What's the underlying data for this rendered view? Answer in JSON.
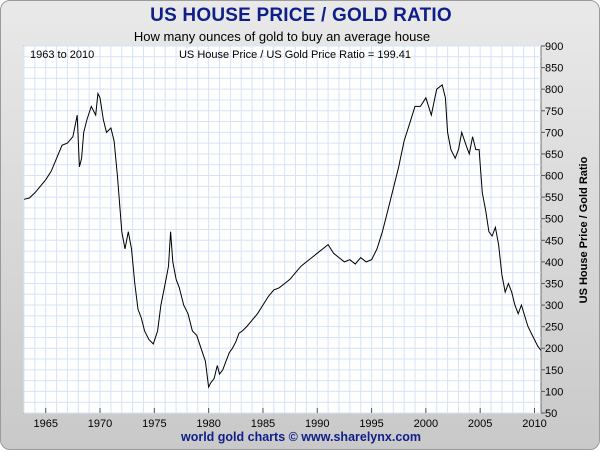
{
  "title": "US HOUSE PRICE / GOLD RATIO",
  "footer": "world gold charts © www.sharelynx.com",
  "colors": {
    "title": "#0f1f8a",
    "line": "#000000",
    "grid": "#d6e4f6",
    "frame_bg": "#d9d9d9"
  },
  "chart_data": {
    "type": "line",
    "title": "US HOUSE PRICE / GOLD RATIO",
    "subtitle": "How many ounces of gold to buy an average house",
    "annotation_left": "1963 to 2010",
    "annotation_center": "US House Price / US Gold Price Ratio = 199.41",
    "ylabel": "US House Price / Gold Ratio",
    "xlabel": "",
    "xlim": [
      1963,
      2010.6
    ],
    "ylim": [
      50,
      900
    ],
    "x_ticks": [
      1965,
      1970,
      1975,
      1980,
      1985,
      1990,
      1995,
      2000,
      2005,
      2010
    ],
    "y_ticks": [
      50,
      100,
      150,
      200,
      250,
      300,
      350,
      400,
      450,
      500,
      550,
      600,
      650,
      700,
      750,
      800,
      850,
      900
    ],
    "grid": true,
    "series": [
      {
        "name": "US House Price / Gold Ratio",
        "x": [
          1963.0,
          1963.5,
          1964.0,
          1964.5,
          1965.0,
          1965.5,
          1966.0,
          1966.5,
          1967.0,
          1967.5,
          1967.9,
          1968.1,
          1968.3,
          1968.5,
          1968.8,
          1969.2,
          1969.6,
          1969.8,
          1970.0,
          1970.3,
          1970.6,
          1971.0,
          1971.3,
          1971.6,
          1972.0,
          1972.3,
          1972.6,
          1972.9,
          1973.2,
          1973.5,
          1973.8,
          1974.1,
          1974.5,
          1974.9,
          1975.3,
          1975.6,
          1976.0,
          1976.3,
          1976.5,
          1976.7,
          1977.0,
          1977.3,
          1977.7,
          1978.1,
          1978.5,
          1978.9,
          1979.3,
          1979.7,
          1980.0,
          1980.2,
          1980.5,
          1980.8,
          1981.0,
          1981.3,
          1981.6,
          1981.9,
          1982.2,
          1982.5,
          1982.8,
          1983.1,
          1983.5,
          1984.0,
          1984.5,
          1985.0,
          1985.5,
          1986.0,
          1986.5,
          1987.0,
          1987.5,
          1988.0,
          1988.5,
          1989.0,
          1989.5,
          1990.0,
          1990.5,
          1991.0,
          1991.5,
          1992.0,
          1992.5,
          1993.0,
          1993.5,
          1994.0,
          1994.5,
          1995.0,
          1995.5,
          1996.0,
          1996.5,
          1997.0,
          1997.5,
          1998.0,
          1998.5,
          1999.0,
          1999.5,
          2000.0,
          2000.5,
          2001.0,
          2001.5,
          2001.8,
          2002.0,
          2002.3,
          2002.7,
          2003.0,
          2003.3,
          2003.7,
          2004.0,
          2004.3,
          2004.6,
          2004.9,
          2005.2,
          2005.5,
          2005.8,
          2006.1,
          2006.4,
          2006.7,
          2007.0,
          2007.3,
          2007.6,
          2007.9,
          2008.2,
          2008.5,
          2008.8,
          2009.1,
          2009.4,
          2009.7,
          2010.0,
          2010.3,
          2010.6
        ],
        "values": [
          545,
          548,
          560,
          575,
          590,
          610,
          640,
          670,
          675,
          690,
          740,
          620,
          640,
          700,
          730,
          760,
          740,
          790,
          780,
          730,
          700,
          710,
          680,
          600,
          470,
          430,
          470,
          430,
          350,
          290,
          270,
          240,
          220,
          210,
          240,
          300,
          350,
          390,
          470,
          400,
          360,
          340,
          300,
          280,
          240,
          230,
          200,
          170,
          110,
          120,
          130,
          160,
          140,
          150,
          170,
          190,
          200,
          215,
          235,
          240,
          250,
          265,
          280,
          300,
          320,
          335,
          340,
          350,
          360,
          375,
          390,
          400,
          410,
          420,
          430,
          440,
          420,
          410,
          400,
          405,
          395,
          410,
          400,
          405,
          430,
          470,
          520,
          570,
          620,
          680,
          720,
          760,
          760,
          780,
          740,
          800,
          810,
          780,
          700,
          660,
          640,
          660,
          700,
          670,
          650,
          690,
          660,
          660,
          560,
          520,
          470,
          460,
          480,
          440,
          370,
          330,
          350,
          330,
          300,
          280,
          300,
          275,
          250,
          235,
          220,
          205,
          195
        ]
      }
    ]
  }
}
